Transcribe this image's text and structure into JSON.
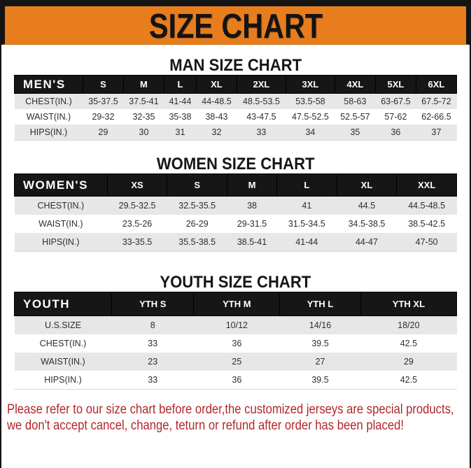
{
  "page": {
    "title": "SIZE CHART",
    "disclaimer_line1": "Please refer to our size chart before order,the customized jerseys are special products,",
    "disclaimer_line2": "we don't accept cancel, change, teturn or refund after order has been placed!"
  },
  "sections": [
    {
      "heading": "MAN SIZE CHART",
      "table": {
        "header": [
          "MEN'S",
          "S",
          "M",
          "L",
          "XL",
          "2XL",
          "3XL",
          "4XL",
          "5XL",
          "6XL"
        ],
        "rows": [
          [
            "CHEST(IN.)",
            "35-37.5",
            "37.5-41",
            "41-44",
            "44-48.5",
            "48.5-53.5",
            "53.5-58",
            "58-63",
            "63-67.5",
            "67.5-72"
          ],
          [
            "WAIST(IN.)",
            "29-32",
            "32-35",
            "35-38",
            "38-43",
            "43-47.5",
            "47.5-52.5",
            "52.5-57",
            "57-62",
            "62-66.5"
          ],
          [
            "HIPS(IN.)",
            "29",
            "30",
            "31",
            "32",
            "33",
            "34",
            "35",
            "36",
            "37"
          ]
        ]
      }
    },
    {
      "heading": "WOMEN SIZE CHART",
      "table": {
        "header": [
          "WOMEN'S",
          "XS",
          "S",
          "M",
          "L",
          "XL",
          "XXL"
        ],
        "rows": [
          [
            "CHEST(IN.)",
            "29.5-32.5",
            "32.5-35.5",
            "38",
            "41",
            "44.5",
            "44.5-48.5"
          ],
          [
            "WAIST(IN.)",
            "23.5-26",
            "26-29",
            "29-31.5",
            "31.5-34.5",
            "34.5-38.5",
            "38.5-42.5"
          ],
          [
            "HIPS(IN.)",
            "33-35.5",
            "35.5-38.5",
            "38.5-41",
            "41-44",
            "44-47",
            "47-50"
          ]
        ]
      }
    },
    {
      "heading": "YOUTH SIZE CHART",
      "table": {
        "header": [
          "YOUTH",
          "YTH S",
          "YTH M",
          "YTH L",
          "YTH XL"
        ],
        "rows": [
          [
            "U.S.SIZE",
            "8",
            "10/12",
            "14/16",
            "18/20"
          ],
          [
            "CHEST(IN.)",
            "33",
            "36",
            "39.5",
            "42.5"
          ],
          [
            "WAIST(IN.)",
            "23",
            "25",
            "27",
            "29"
          ],
          [
            "HIPS(IN.)",
            "33",
            "36",
            "39.5",
            "42.5"
          ]
        ]
      }
    }
  ],
  "colors": {
    "banner_bg": "#E87D1E",
    "banner_text": "#141414",
    "table_header_bg": "#161616",
    "table_header_text": "#FFFFFF",
    "row_stripe": "#E7E7E7",
    "disclaimer_text": "#B2262B",
    "frame": "#141414"
  }
}
